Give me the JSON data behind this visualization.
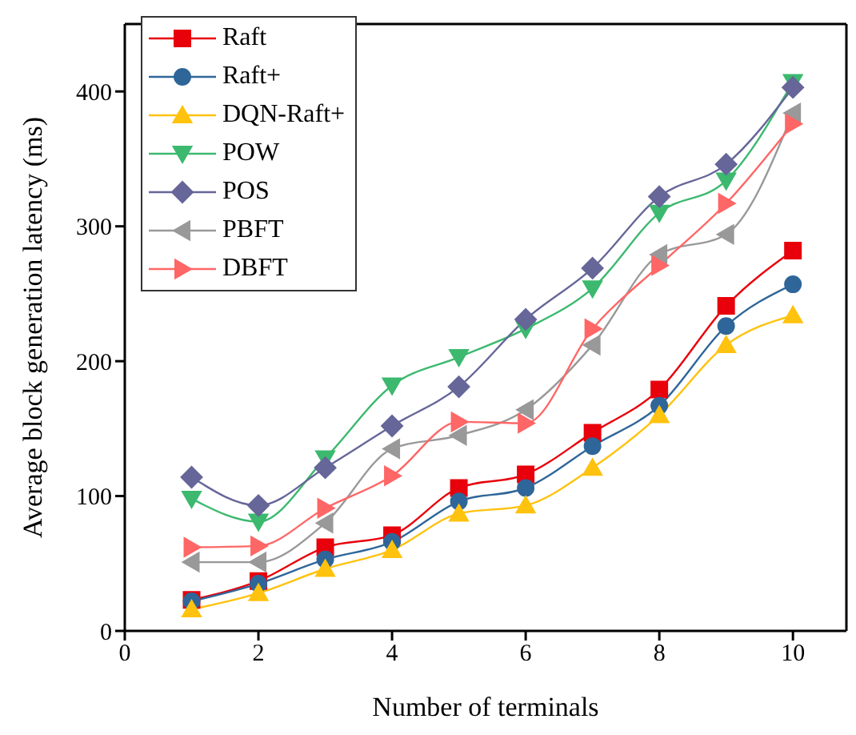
{
  "chart_data": {
    "type": "line",
    "xlabel": "Number of terminals",
    "ylabel": "Average block generation latency (ms)",
    "x": [
      1,
      2,
      3,
      4,
      5,
      6,
      7,
      8,
      9,
      10
    ],
    "xlim": [
      0,
      10.8
    ],
    "xticks": [
      0,
      2,
      4,
      6,
      8,
      10
    ],
    "ylim": [
      0,
      450
    ],
    "yticks": [
      0,
      100,
      200,
      300,
      400
    ],
    "grid": false,
    "legend": "top left",
    "series": [
      {
        "name": "Raft",
        "color": "#e8000b",
        "marker": "square",
        "values": [
          23,
          37,
          62,
          71,
          106,
          116,
          147,
          179,
          241,
          282
        ]
      },
      {
        "name": "Raft+",
        "color": "#2f6699",
        "marker": "circle",
        "values": [
          22,
          35,
          53,
          66,
          96,
          106,
          137,
          167,
          226,
          257
        ]
      },
      {
        "name": "DQN-Raft+",
        "color": "#ffc20e",
        "marker": "triangle",
        "values": [
          16,
          28,
          46,
          60,
          87,
          93,
          121,
          160,
          212,
          234
        ]
      },
      {
        "name": "POW",
        "color": "#3cb96f",
        "marker": "triangle-down",
        "values": [
          98,
          81,
          128,
          182,
          203,
          224,
          254,
          310,
          334,
          407
        ]
      },
      {
        "name": "POS",
        "color": "#666699",
        "marker": "diamond",
        "values": [
          114,
          93,
          121,
          152,
          181,
          231,
          269,
          322,
          346,
          403
        ]
      },
      {
        "name": "PBFT",
        "color": "#999999",
        "marker": "triangle-left",
        "values": [
          51,
          51,
          80,
          135,
          145,
          164,
          212,
          279,
          294,
          384
        ]
      },
      {
        "name": "DBFT",
        "color": "#ff6666",
        "marker": "triangle-right",
        "values": [
          62,
          63,
          91,
          115,
          155,
          154,
          224,
          271,
          317,
          376
        ]
      }
    ]
  }
}
